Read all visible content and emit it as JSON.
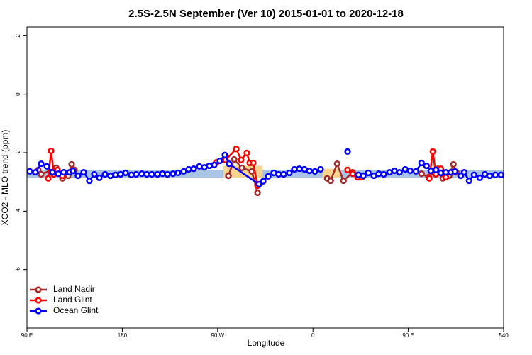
{
  "chart_data": {
    "type": "line",
    "title": "2.5S-2.5N September (Ver 10)   2015-01-01 to 2020-12-18",
    "xlabel": "Longitude",
    "ylabel": "XCO2 - MLO trend (ppm)",
    "xlim": [
      90,
      540
    ],
    "ylim": [
      -8,
      2.3
    ],
    "xticks": [
      {
        "value": 90,
        "label": "90 E"
      },
      180,
      {
        "value": 270,
        "label": "90 W"
      },
      {
        "value": 360,
        "label": "0"
      },
      {
        "value": 450,
        "label": "90 E"
      },
      540
    ],
    "yticks": [
      2,
      0,
      -2,
      -4,
      -6
    ],
    "legend": "bottom-left",
    "bands": [
      {
        "color": "#a9c4e4",
        "xlim": [
          90,
          540
        ],
        "ylim": [
          -2.85,
          -2.6
        ]
      },
      {
        "color": "#f8d48e",
        "xlim": [
          275.5,
          312.5
        ],
        "ylim": [
          -2.85,
          -2.45
        ]
      },
      {
        "color": "#f8d48e",
        "xlim": [
          369,
          386
        ],
        "ylim": [
          -2.85,
          -2.55
        ]
      }
    ],
    "series": [
      {
        "name": "Land Nadir",
        "color": "#a52a2a",
        "x": [
          100.7,
          103.4,
          117.5,
          123.5,
          128.8,
          132.2,
          134.9,
          200,
          280.2,
          285.6,
          292.9,
          302.3,
          307.7,
          350,
          373.4,
          376.7,
          382.8,
          388.8,
          397.5,
          403.5,
          430,
          462.5,
          469.2,
          477.9,
          482.6,
          488.6,
          492.6,
          495.3
        ],
        "values": [
          -2.59,
          -2.74,
          -2.52,
          -2.88,
          -2.79,
          -2.4,
          -2.59,
          null,
          -2.79,
          -2.23,
          -2.52,
          -2.64,
          -3.37,
          null,
          -2.88,
          -2.96,
          -2.38,
          -2.96,
          -2.67,
          -2.84,
          null,
          -2.72,
          -2.84,
          -2.55,
          -2.88,
          -2.79,
          -2.4,
          -2.67
        ]
      },
      {
        "name": "Land Glint",
        "color": "#ff0000",
        "x": [
          110.1,
          112.8,
          115.4,
          118.8,
          123.5,
          200,
          268.8,
          277.5,
          287.6,
          292.2,
          297.6,
          300.3,
          303.6,
          307.7,
          350,
          392.7,
          397.5,
          402.2,
          406.2,
          430,
          469.8,
          473.2,
          476,
          480.7,
          485.4
        ],
        "values": [
          -2.88,
          -1.94,
          -2.74,
          -2.59,
          -2.79,
          null,
          -2.33,
          -2.25,
          -1.87,
          -2.25,
          -2.01,
          -2.35,
          -2.35,
          -3.13,
          null,
          -2.59,
          -2.72,
          -2.84,
          -2.84,
          null,
          -2.88,
          -1.96,
          -2.74,
          -2.55,
          -2.84
        ]
      },
      {
        "name": "Ocean Glint",
        "color": "#0000ff",
        "x": [
          92.7,
          98,
          103.4,
          108.8,
          114.1,
          119.5,
          124.8,
          130.2,
          133.5,
          138.2,
          143.6,
          148.9,
          153.6,
          158.3,
          163.7,
          169,
          173.7,
          178.4,
          183.1,
          188.4,
          193.1,
          198.5,
          203.2,
          207.9,
          213.2,
          217.9,
          222.6,
          227.9,
          232.6,
          238,
          242.7,
          247.4,
          252.7,
          257.4,
          262.1,
          266.8,
          272.1,
          276.8,
          280.8,
          309,
          313,
          317.7,
          323,
          327.7,
          332.4,
          337.7,
          342.4,
          347.1,
          351.8,
          356.5,
          361.8,
          367.2,
          380,
          392.7,
          397,
          402.7,
          407.5,
          412.2,
          417.5,
          422.2,
          426.9,
          432.3,
          437,
          441.7,
          447.1,
          451.8,
          457.2,
          462.5,
          467.2,
          471.2,
          476,
          480.7,
          485.4,
          490.1,
          494.1,
          499.5,
          502.8,
          507.4,
          512.1,
          517.5,
          522.2,
          526.8,
          532.2,
          537.6
        ],
        "values": [
          -2.64,
          -2.67,
          -2.38,
          -2.47,
          -2.67,
          -2.72,
          -2.67,
          -2.67,
          -2.62,
          -2.79,
          -2.67,
          -2.96,
          -2.74,
          -2.86,
          -2.74,
          -2.79,
          -2.76,
          -2.74,
          -2.69,
          -2.76,
          -2.74,
          -2.72,
          -2.74,
          -2.74,
          -2.74,
          -2.72,
          -2.74,
          -2.72,
          -2.69,
          -2.64,
          -2.57,
          -2.55,
          -2.47,
          -2.5,
          -2.45,
          -2.42,
          -2.28,
          -2.08,
          -2.38,
          -3.08,
          -2.98,
          -2.81,
          -2.69,
          -2.74,
          -2.74,
          -2.69,
          -2.57,
          -2.55,
          -2.57,
          -2.62,
          -2.64,
          -2.57,
          null,
          -1.96,
          null,
          -2.76,
          -2.79,
          -2.69,
          -2.79,
          -2.72,
          -2.74,
          -2.67,
          -2.62,
          -2.67,
          -2.57,
          -2.62,
          -2.64,
          -2.35,
          -2.45,
          -2.62,
          -2.59,
          -2.69,
          -2.67,
          -2.67,
          -2.64,
          -2.79,
          -2.67,
          -2.96,
          -2.76,
          -2.86,
          -2.74,
          -2.79,
          -2.76,
          -2.76
        ]
      }
    ]
  }
}
